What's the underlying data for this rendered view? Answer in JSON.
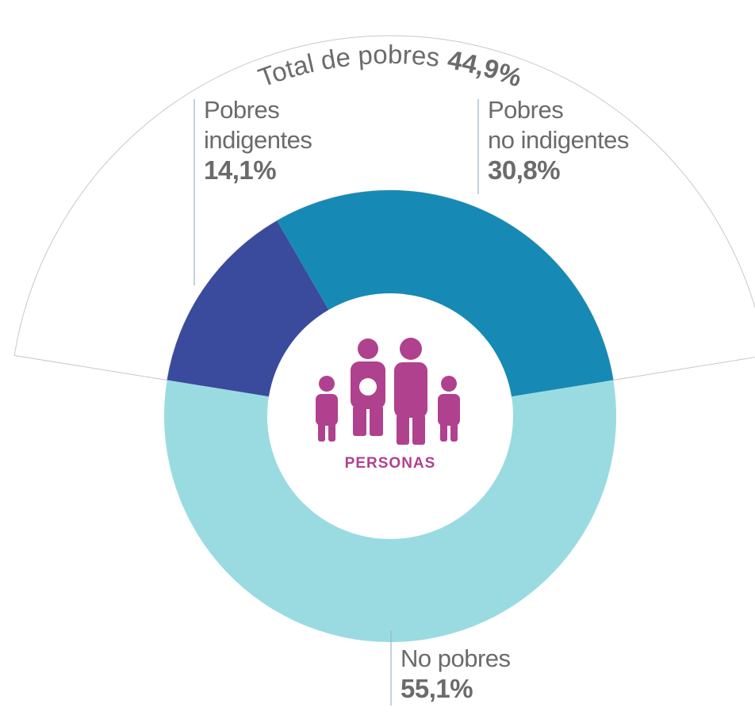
{
  "chart_data": {
    "type": "donut",
    "categories": [
      "Pobres\nindigentes",
      "Pobres\nno indigentes",
      "No pobres"
    ],
    "values": [
      14.1,
      30.8,
      55.1
    ],
    "value_labels": [
      "14,1%",
      "30,8%",
      "55,1%"
    ],
    "colors": [
      "#3a4a9c",
      "#168ab4",
      "#9adbe2"
    ],
    "total": {
      "label": "Total de pobres",
      "value": 44.9,
      "value_label": "44,9%"
    },
    "center_label": "PERSONAS",
    "icon_color": "#b0418f"
  }
}
